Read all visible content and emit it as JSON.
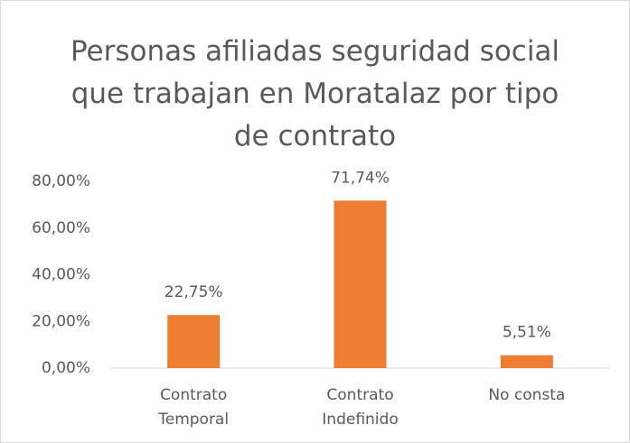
{
  "chart_data": {
    "type": "bar",
    "title": "Personas afiliadas seguridad social que trabajan en Moratalaz por tipo de contrato",
    "categories": [
      "Contrato Temporal",
      "Contrato Indefinido",
      "No consta"
    ],
    "values": [
      22.75,
      71.74,
      5.51
    ],
    "value_labels": [
      "22,75%",
      "71,74%",
      "5,51%"
    ],
    "color": "#ed7d31",
    "ylim": [
      0,
      80
    ],
    "yticks": [
      {
        "value": 0,
        "label": "0,00%"
      },
      {
        "value": 20,
        "label": "20,00%"
      },
      {
        "value": 40,
        "label": "40,00%"
      },
      {
        "value": 60,
        "label": "60,00%"
      },
      {
        "value": 80,
        "label": "80,00%"
      }
    ],
    "grid": false
  }
}
